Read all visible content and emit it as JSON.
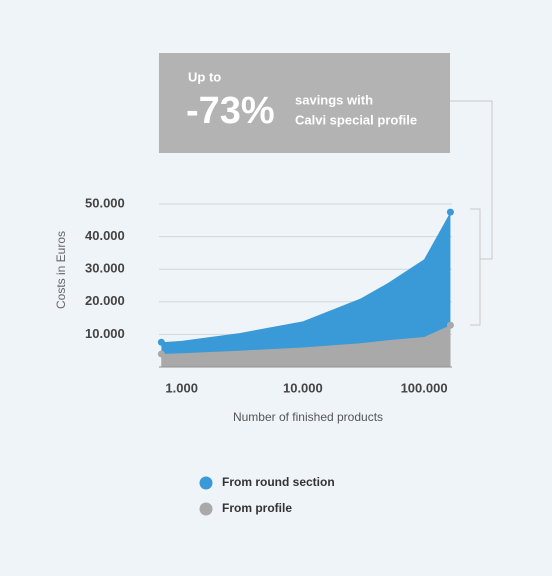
{
  "chart_data": {
    "type": "area",
    "headline": {
      "prefix": "Up to",
      "figure": "-73%",
      "line1": "savings with",
      "line2": "Calvi special profile"
    },
    "y_label": "Costs in Euros",
    "x_label": "Number of finished products",
    "x_scale": "log",
    "x": [
      680,
      1000,
      3000,
      10000,
      30000,
      50000,
      100000,
      165000
    ],
    "xlim": [
      650,
      170000
    ],
    "xticks": [
      {
        "value": 1000,
        "label": "1.000"
      },
      {
        "value": 10000,
        "label": "10.000"
      },
      {
        "value": 100000,
        "label": "100.000"
      }
    ],
    "ylim": [
      0,
      50000
    ],
    "yticks": [
      {
        "value": 10000,
        "label": "10.000"
      },
      {
        "value": 20000,
        "label": "20.000"
      },
      {
        "value": 30000,
        "label": "30.000"
      },
      {
        "value": 40000,
        "label": "40.000"
      },
      {
        "value": 50000,
        "label": "50.000"
      }
    ],
    "grid": true,
    "series": [
      {
        "name": "From round section",
        "color": "#3a9ad8",
        "values": [
          7600,
          8000,
          10400,
          14000,
          21000,
          25700,
          33000,
          47500
        ]
      },
      {
        "name": "From profile",
        "color": "#a9a9a9",
        "values": [
          4000,
          4200,
          5000,
          6000,
          7300,
          8200,
          9200,
          12800
        ]
      }
    ]
  }
}
